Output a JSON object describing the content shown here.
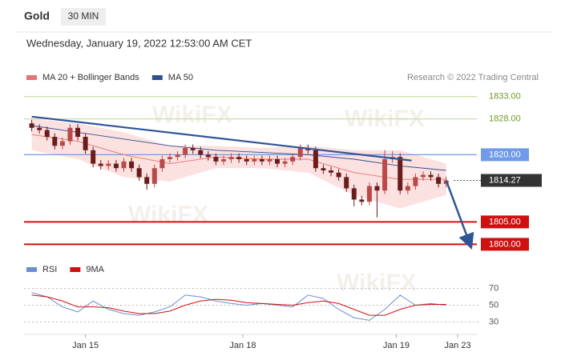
{
  "chart_data": [
    {
      "type": "candlestick",
      "title": "Gold",
      "timeframe": "30 MIN",
      "subtitle": "Wednesday, January 19, 2022 12:53:00 AM CET",
      "credit": "Research © 2022 Trading Central",
      "watermark": "WikiFX",
      "xlim": [
        -1,
        58
      ],
      "ylim": [
        1798,
        1834
      ],
      "up_color": "#b94a48",
      "down_color": "#6b1c1c",
      "open": [
        1827,
        1826,
        1825.5,
        1824,
        1822,
        1823,
        1826,
        1824,
        1821,
        1818,
        1817.5,
        1818,
        1817,
        1818.5,
        1817,
        1815,
        1813.5,
        1817,
        1819,
        1819.5,
        1820,
        1821.5,
        1821,
        1820,
        1819.5,
        1818.5,
        1819,
        1819.5,
        1819,
        1818.5,
        1819,
        1818.5,
        1819,
        1818,
        1818.5,
        1819.5,
        1821.5,
        1821,
        1817,
        1816.5,
        1816,
        1815,
        1812.5,
        1810,
        1809.5,
        1813,
        1812,
        1819,
        1819.5,
        1812,
        1813,
        1815,
        1815.5,
        1815,
        1813.5
      ],
      "high": [
        1827.8,
        1826.8,
        1826.3,
        1824.8,
        1823.8,
        1826.8,
        1826.8,
        1824.8,
        1821.8,
        1818.8,
        1818.8,
        1818.8,
        1819.3,
        1819.3,
        1817.8,
        1815.8,
        1817.8,
        1819.8,
        1820.3,
        1820.8,
        1822.3,
        1822.3,
        1821.8,
        1820.8,
        1820.3,
        1819.8,
        1820.3,
        1820.3,
        1819.8,
        1819.8,
        1819.8,
        1819.8,
        1819.8,
        1819.3,
        1820.3,
        1822.3,
        1822.3,
        1821.8,
        1817.8,
        1817.3,
        1816.8,
        1815.8,
        1813.3,
        1810.8,
        1813.8,
        1813.8,
        1821,
        1820.8,
        1820.3,
        1813.8,
        1815.8,
        1816.3,
        1816.3,
        1815.8,
        1815.1
      ],
      "low": [
        1825.2,
        1824.7,
        1823.2,
        1821.2,
        1821.2,
        1822.2,
        1823.2,
        1820.2,
        1817.2,
        1816.7,
        1816.7,
        1816.2,
        1816.2,
        1816.2,
        1814.2,
        1812.2,
        1812.7,
        1816.2,
        1818.2,
        1818.7,
        1819.2,
        1820.2,
        1819.2,
        1818.7,
        1817.7,
        1817.7,
        1818.2,
        1818.2,
        1817.7,
        1817.7,
        1817.7,
        1817.7,
        1817.2,
        1817.2,
        1817.7,
        1818.7,
        1820.2,
        1816.2,
        1815.7,
        1815.2,
        1814.2,
        1811.7,
        1808.5,
        1808.7,
        1808.7,
        1806,
        1811.2,
        1818.2,
        1811.2,
        1811.2,
        1812.2,
        1814.2,
        1814.2,
        1812.7,
        1812.7
      ],
      "close": [
        1826,
        1825.5,
        1824,
        1822,
        1823,
        1826,
        1824,
        1821,
        1818,
        1817.5,
        1818,
        1817,
        1818.5,
        1817,
        1815,
        1813.5,
        1817,
        1819,
        1819.5,
        1820,
        1821.5,
        1821,
        1820,
        1819.5,
        1818.5,
        1819,
        1819.5,
        1819,
        1818.5,
        1819,
        1818.5,
        1819,
        1818,
        1818.5,
        1819.5,
        1821.5,
        1821,
        1817,
        1816.5,
        1816,
        1815,
        1812.5,
        1810,
        1809.5,
        1813,
        1812,
        1819,
        1819.5,
        1812,
        1813,
        1815,
        1815.5,
        1815,
        1813.5,
        1814.27
      ],
      "series": [
        {
          "name": "MA 20 + Bollinger Bands",
          "color": "#e57373",
          "band_color": "#fbdada",
          "x": [
            0,
            6,
            12,
            18,
            24,
            30,
            36,
            42,
            48,
            54
          ],
          "values": [
            1824.5,
            1823,
            1820,
            1818,
            1819.5,
            1819,
            1819,
            1816,
            1814.5,
            1814.5
          ],
          "upper": [
            1828,
            1827,
            1825,
            1822,
            1822,
            1821.5,
            1822,
            1821,
            1821,
            1818
          ],
          "lower": [
            1821,
            1819,
            1815,
            1814,
            1817,
            1817,
            1816,
            1811,
            1808,
            1811
          ]
        },
        {
          "name": "MA 50",
          "color": "#2f4f8f",
          "x": [
            0,
            6,
            12,
            18,
            24,
            30,
            36,
            42,
            48,
            54
          ],
          "values": [
            1826.5,
            1825,
            1823.5,
            1822,
            1821,
            1820.5,
            1820,
            1819,
            1817.5,
            1816.5
          ]
        }
      ],
      "trendline": {
        "color": "#2f5597",
        "x": [
          0,
          49.5
        ],
        "values": [
          1828.5,
          1818.7
        ]
      },
      "arrow": {
        "color": "#2f5597",
        "x": [
          54,
          57
        ],
        "values": [
          1814.27,
          1800.5
        ]
      },
      "levels": [
        {
          "value": 1833,
          "label": "1833.00",
          "color": "#c9dfa6",
          "text_color": "#6f9a2a",
          "boxed": false
        },
        {
          "value": 1828,
          "label": "1828.00",
          "color": "#c9dfa6",
          "text_color": "#6f9a2a",
          "boxed": false
        },
        {
          "value": 1820,
          "label": "1820.00",
          "color": "#6f9be8",
          "text_color": "#ffffff",
          "boxed": true
        },
        {
          "value": 1805,
          "label": "1805.00",
          "color": "#d01010",
          "text_color": "#ffffff",
          "boxed": true
        },
        {
          "value": 1800,
          "label": "1800.00",
          "color": "#d01010",
          "text_color": "#ffffff",
          "boxed": true
        }
      ],
      "last_price": 1814.27,
      "last_color": "#333333"
    },
    {
      "type": "line",
      "xlim": [
        -1,
        58
      ],
      "ylim": [
        20,
        80
      ],
      "yticks": [
        30,
        50,
        70
      ],
      "xticks": [
        {
          "value": 7,
          "label": "Jan 15"
        },
        {
          "value": 27.5,
          "label": "Jan 18"
        },
        {
          "value": 47.5,
          "label": "Jan 19"
        },
        {
          "value": 55.5,
          "label": "Jan 23"
        }
      ],
      "x": [
        0,
        2,
        4,
        6,
        8,
        10,
        12,
        14,
        16,
        18,
        20,
        22,
        24,
        26,
        28,
        30,
        32,
        34,
        36,
        38,
        40,
        42,
        44,
        46,
        48,
        50,
        52,
        54
      ],
      "series": [
        {
          "name": "RSI",
          "color": "#6a8fd0",
          "values": [
            65,
            60,
            48,
            42,
            55,
            45,
            40,
            38,
            42,
            48,
            62,
            60,
            55,
            52,
            50,
            52,
            50,
            48,
            62,
            58,
            45,
            35,
            32,
            45,
            62,
            50,
            52,
            50
          ]
        },
        {
          "name": "9MA",
          "color": "#d01010",
          "values": [
            62,
            60,
            55,
            48,
            48,
            47,
            43,
            40,
            40,
            43,
            50,
            55,
            57,
            56,
            53,
            52,
            51,
            50,
            53,
            55,
            52,
            45,
            38,
            38,
            45,
            50,
            51,
            51
          ]
        }
      ]
    }
  ]
}
